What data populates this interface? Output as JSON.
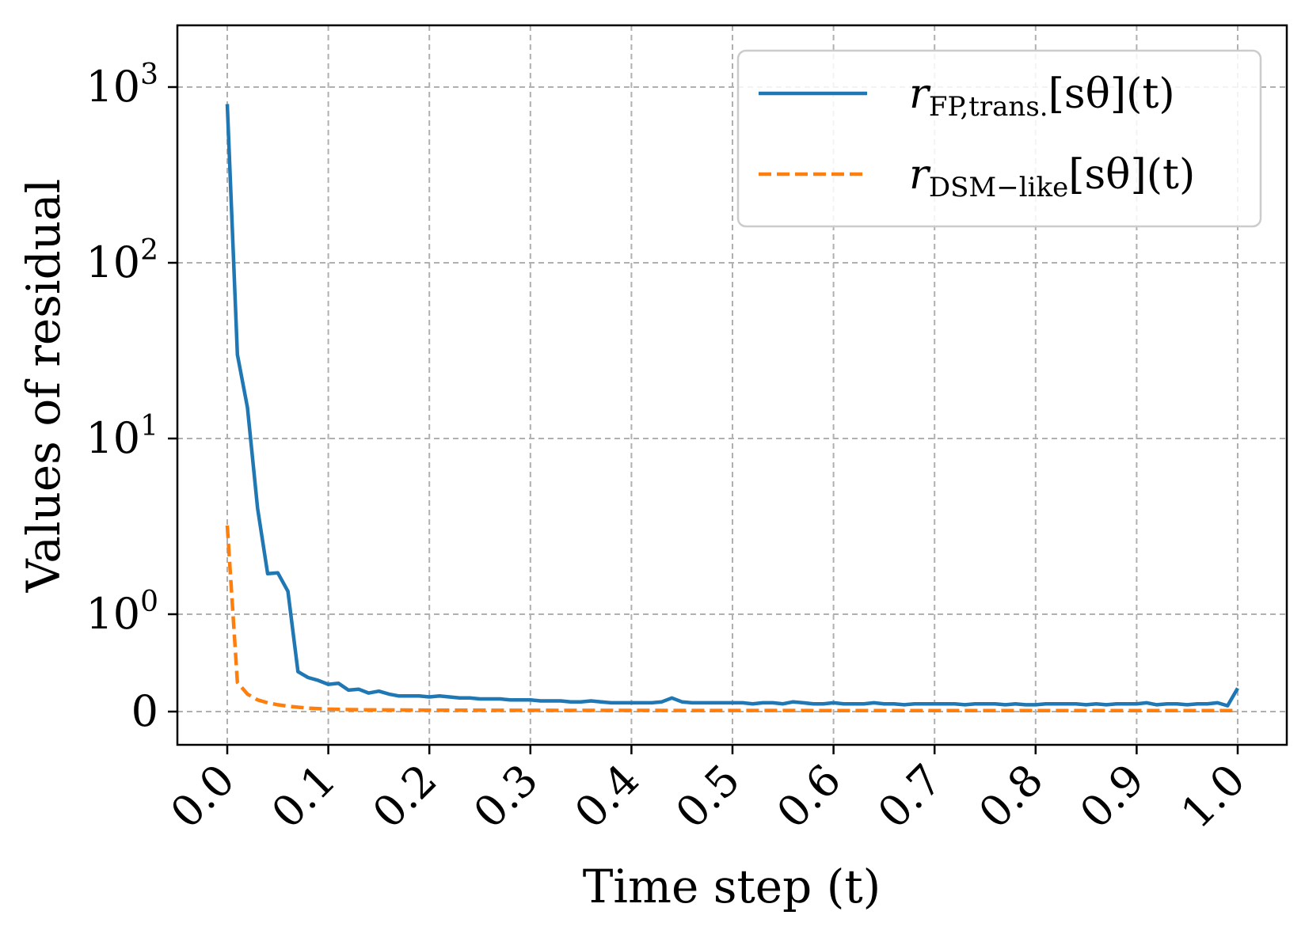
{
  "chart_data": {
    "type": "line",
    "title": "",
    "xlabel": "Time step (t)",
    "ylabel": "Values of residual",
    "x_ticks": [
      "0.0",
      "0.1",
      "0.2",
      "0.3",
      "0.4",
      "0.5",
      "0.6",
      "0.7",
      "0.8",
      "0.9",
      "1.0"
    ],
    "y_ticks": [
      {
        "value": 0,
        "base": "0",
        "exp": ""
      },
      {
        "value": 1,
        "base": "10",
        "exp": "0"
      },
      {
        "value": 10,
        "base": "10",
        "exp": "1"
      },
      {
        "value": 100,
        "base": "10",
        "exp": "2"
      },
      {
        "value": 1000,
        "base": "10",
        "exp": "3"
      }
    ],
    "xlim": [
      -0.05,
      1.05
    ],
    "ylim": [
      -0.5,
      1000
    ],
    "yscale": "symlog",
    "grid": true,
    "legend_position": "top-right",
    "series": [
      {
        "name": "r_{FP,trans.}[s_θ](t)",
        "legend": {
          "main": "r",
          "sub": "FP,trans.",
          "rest": "[sθ](t)"
        },
        "color": "#1f77b4",
        "linestyle": "solid",
        "x": [
          0.0,
          0.01,
          0.02,
          0.03,
          0.04,
          0.05,
          0.06,
          0.07,
          0.08,
          0.09,
          0.1,
          0.11,
          0.12,
          0.13,
          0.14,
          0.15,
          0.16,
          0.17,
          0.18,
          0.19,
          0.2,
          0.21,
          0.22,
          0.23,
          0.24,
          0.25,
          0.26,
          0.27,
          0.28,
          0.29,
          0.3,
          0.31,
          0.32,
          0.33,
          0.34,
          0.35,
          0.36,
          0.37,
          0.38,
          0.39,
          0.4,
          0.41,
          0.42,
          0.43,
          0.44,
          0.45,
          0.46,
          0.47,
          0.48,
          0.49,
          0.5,
          0.51,
          0.52,
          0.53,
          0.54,
          0.55,
          0.56,
          0.57,
          0.58,
          0.59,
          0.6,
          0.61,
          0.62,
          0.63,
          0.64,
          0.65,
          0.66,
          0.67,
          0.68,
          0.69,
          0.7,
          0.71,
          0.72,
          0.73,
          0.74,
          0.75,
          0.76,
          0.77,
          0.78,
          0.79,
          0.8,
          0.81,
          0.82,
          0.83,
          0.84,
          0.85,
          0.86,
          0.87,
          0.88,
          0.89,
          0.9,
          0.91,
          0.92,
          0.93,
          0.94,
          0.95,
          0.96,
          0.97,
          0.98,
          0.99,
          1.0
        ],
        "y": [
          800,
          30,
          15,
          4,
          1.7,
          1.72,
          1.35,
          0.41,
          0.35,
          0.32,
          0.28,
          0.29,
          0.22,
          0.23,
          0.19,
          0.21,
          0.18,
          0.16,
          0.16,
          0.16,
          0.15,
          0.16,
          0.15,
          0.14,
          0.14,
          0.13,
          0.13,
          0.13,
          0.12,
          0.12,
          0.12,
          0.11,
          0.11,
          0.11,
          0.1,
          0.1,
          0.11,
          0.1,
          0.09,
          0.09,
          0.09,
          0.09,
          0.09,
          0.1,
          0.14,
          0.1,
          0.09,
          0.09,
          0.09,
          0.09,
          0.09,
          0.09,
          0.08,
          0.09,
          0.09,
          0.08,
          0.1,
          0.09,
          0.08,
          0.08,
          0.09,
          0.08,
          0.08,
          0.08,
          0.09,
          0.08,
          0.08,
          0.07,
          0.08,
          0.08,
          0.08,
          0.08,
          0.08,
          0.07,
          0.08,
          0.08,
          0.08,
          0.07,
          0.08,
          0.07,
          0.07,
          0.08,
          0.08,
          0.08,
          0.08,
          0.07,
          0.08,
          0.07,
          0.08,
          0.08,
          0.08,
          0.09,
          0.07,
          0.08,
          0.08,
          0.07,
          0.08,
          0.08,
          0.09,
          0.06,
          0.24
        ]
      },
      {
        "name": "r_{DSM-like}[s_θ](t)",
        "legend": {
          "main": "r",
          "sub": "DSM−like",
          "rest": "[sθ](t)"
        },
        "color": "#ff7f0e",
        "linestyle": "dashed",
        "x": [
          0.0,
          0.01,
          0.02,
          0.03,
          0.04,
          0.05,
          0.06,
          0.07,
          0.08,
          0.09,
          0.1,
          0.12,
          0.15,
          0.2,
          0.25,
          0.3,
          0.35,
          0.4,
          0.45,
          0.5,
          0.55,
          0.6,
          0.65,
          0.7,
          0.75,
          0.8,
          0.85,
          0.9,
          0.95,
          1.0
        ],
        "y": [
          3.2,
          0.3,
          0.18,
          0.12,
          0.09,
          0.07,
          0.055,
          0.045,
          0.035,
          0.03,
          0.025,
          0.02,
          0.017,
          0.015,
          0.014,
          0.013,
          0.012,
          0.012,
          0.011,
          0.011,
          0.011,
          0.01,
          0.01,
          0.01,
          0.01,
          0.01,
          0.01,
          0.01,
          0.01,
          0.01
        ]
      }
    ]
  }
}
